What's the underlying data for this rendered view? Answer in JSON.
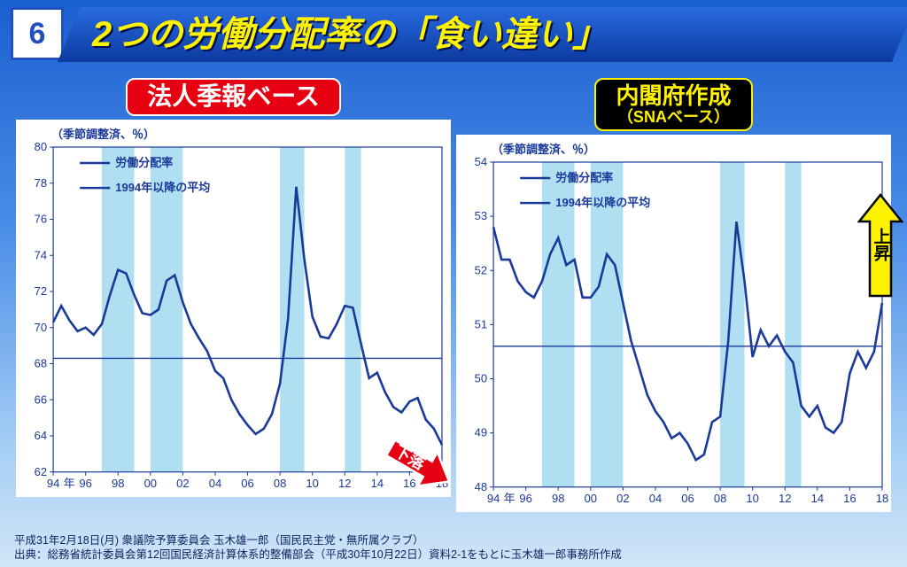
{
  "page_number": "6",
  "title": "2つの労働分配率の「食い違い」",
  "chart_left": {
    "label": "法人季報ベース",
    "subtitle": "（季節調整済、％）",
    "legend_series": "労働分配率",
    "legend_avg": "1994年以降の平均",
    "type": "line",
    "ylim": [
      62,
      80
    ],
    "ytick_step": 2,
    "xlim": [
      94,
      118
    ],
    "xticks": [
      94,
      96,
      98,
      100,
      102,
      104,
      106,
      108,
      110,
      112,
      114,
      116,
      118
    ],
    "xtick_labels": [
      "94",
      "96",
      "98",
      "00",
      "02",
      "04",
      "06",
      "08",
      "10",
      "12",
      "14",
      "16",
      "18"
    ],
    "x_axis_label": "年",
    "avg_value": 68.3,
    "shade_bands": [
      [
        97,
        99
      ],
      [
        100,
        102
      ],
      [
        108,
        109.5
      ],
      [
        112,
        113
      ]
    ],
    "series": [
      [
        94,
        70.3
      ],
      [
        94.5,
        71.2
      ],
      [
        95,
        70.4
      ],
      [
        95.5,
        69.8
      ],
      [
        96,
        70.0
      ],
      [
        96.5,
        69.6
      ],
      [
        97,
        70.2
      ],
      [
        97.5,
        71.8
      ],
      [
        98,
        73.2
      ],
      [
        98.5,
        73.0
      ],
      [
        99,
        71.8
      ],
      [
        99.5,
        70.8
      ],
      [
        100,
        70.7
      ],
      [
        100.5,
        71.0
      ],
      [
        101,
        72.6
      ],
      [
        101.5,
        72.9
      ],
      [
        102,
        71.4
      ],
      [
        102.5,
        70.2
      ],
      [
        103,
        69.4
      ],
      [
        103.5,
        68.7
      ],
      [
        104,
        67.6
      ],
      [
        104.5,
        67.2
      ],
      [
        105,
        66.0
      ],
      [
        105.5,
        65.2
      ],
      [
        106,
        64.6
      ],
      [
        106.5,
        64.1
      ],
      [
        107,
        64.4
      ],
      [
        107.5,
        65.2
      ],
      [
        108,
        66.9
      ],
      [
        108.5,
        70.5
      ],
      [
        109,
        77.8
      ],
      [
        109.5,
        73.8
      ],
      [
        110,
        70.6
      ],
      [
        110.5,
        69.5
      ],
      [
        111,
        69.4
      ],
      [
        111.5,
        70.2
      ],
      [
        112,
        71.2
      ],
      [
        112.5,
        71.1
      ],
      [
        113,
        69.1
      ],
      [
        113.5,
        67.2
      ],
      [
        114,
        67.5
      ],
      [
        114.5,
        66.4
      ],
      [
        115,
        65.6
      ],
      [
        115.5,
        65.3
      ],
      [
        116,
        65.9
      ],
      [
        116.5,
        66.1
      ],
      [
        117,
        64.9
      ],
      [
        117.5,
        64.4
      ],
      [
        118,
        63.5
      ]
    ],
    "line_color": "#1a3a9a",
    "avg_color": "#1a3a9a",
    "bg_color": "#ffffff",
    "shade_color": "#b0dff2",
    "axis_color": "#1a3a9a",
    "arrow_label": "下落",
    "arrow_fill": "#e60012"
  },
  "chart_right": {
    "label_main": "内閣府作成",
    "label_sub": "（SNAベース）",
    "subtitle": "（季節調整済、％）",
    "legend_series": "労働分配率",
    "legend_avg": "1994年以降の平均",
    "type": "line",
    "ylim": [
      48,
      54
    ],
    "ytick_step": 1,
    "xlim": [
      94,
      118
    ],
    "xticks": [
      94,
      96,
      98,
      100,
      102,
      104,
      106,
      108,
      110,
      112,
      114,
      116,
      118
    ],
    "xtick_labels": [
      "94",
      "96",
      "98",
      "00",
      "02",
      "04",
      "06",
      "08",
      "10",
      "12",
      "14",
      "16",
      "18"
    ],
    "x_axis_label": "年",
    "avg_value": 50.6,
    "shade_bands": [
      [
        97,
        99
      ],
      [
        100,
        102
      ],
      [
        108,
        109.5
      ],
      [
        112,
        113
      ]
    ],
    "series": [
      [
        94,
        52.8
      ],
      [
        94.5,
        52.2
      ],
      [
        95,
        52.2
      ],
      [
        95.5,
        51.8
      ],
      [
        96,
        51.6
      ],
      [
        96.5,
        51.5
      ],
      [
        97,
        51.8
      ],
      [
        97.5,
        52.3
      ],
      [
        98,
        52.6
      ],
      [
        98.5,
        52.1
      ],
      [
        99,
        52.2
      ],
      [
        99.5,
        51.5
      ],
      [
        100,
        51.5
      ],
      [
        100.5,
        51.7
      ],
      [
        101,
        52.3
      ],
      [
        101.5,
        52.1
      ],
      [
        102,
        51.4
      ],
      [
        102.5,
        50.7
      ],
      [
        103,
        50.2
      ],
      [
        103.5,
        49.7
      ],
      [
        104,
        49.4
      ],
      [
        104.5,
        49.2
      ],
      [
        105,
        48.9
      ],
      [
        105.5,
        49.0
      ],
      [
        106,
        48.8
      ],
      [
        106.5,
        48.5
      ],
      [
        107,
        48.6
      ],
      [
        107.5,
        49.2
      ],
      [
        108,
        49.3
      ],
      [
        108.5,
        50.7
      ],
      [
        109,
        52.9
      ],
      [
        109.5,
        51.8
      ],
      [
        110,
        50.4
      ],
      [
        110.5,
        50.9
      ],
      [
        111,
        50.6
      ],
      [
        111.5,
        50.8
      ],
      [
        112,
        50.5
      ],
      [
        112.5,
        50.3
      ],
      [
        113,
        49.5
      ],
      [
        113.5,
        49.3
      ],
      [
        114,
        49.5
      ],
      [
        114.5,
        49.1
      ],
      [
        115,
        49.0
      ],
      [
        115.5,
        49.2
      ],
      [
        116,
        50.1
      ],
      [
        116.5,
        50.5
      ],
      [
        117,
        50.2
      ],
      [
        117.5,
        50.5
      ],
      [
        118,
        51.4
      ]
    ],
    "line_color": "#1a3a9a",
    "avg_color": "#1a3a9a",
    "bg_color": "#ffffff",
    "shade_color": "#b0dff2",
    "axis_color": "#1a3a9a",
    "arrow_label": "上昇",
    "arrow_fill": "#fff200"
  },
  "footer_line1": "平成31年2月18日(月) 衆議院予算委員会 玉木雄一郎（国民民主党・無所属クラブ）",
  "footer_line2": "出典：総務省統計委員会第12回国民経済計算体系的整備部会（平成30年10月22日）資料2-1をもとに玉木雄一郎事務所作成",
  "colors": {
    "bg_gradient_top": "#1a5fd0",
    "bg_gradient_bottom": "#d0e5f8",
    "title_accent": "#fff200",
    "red": "#e60012"
  }
}
